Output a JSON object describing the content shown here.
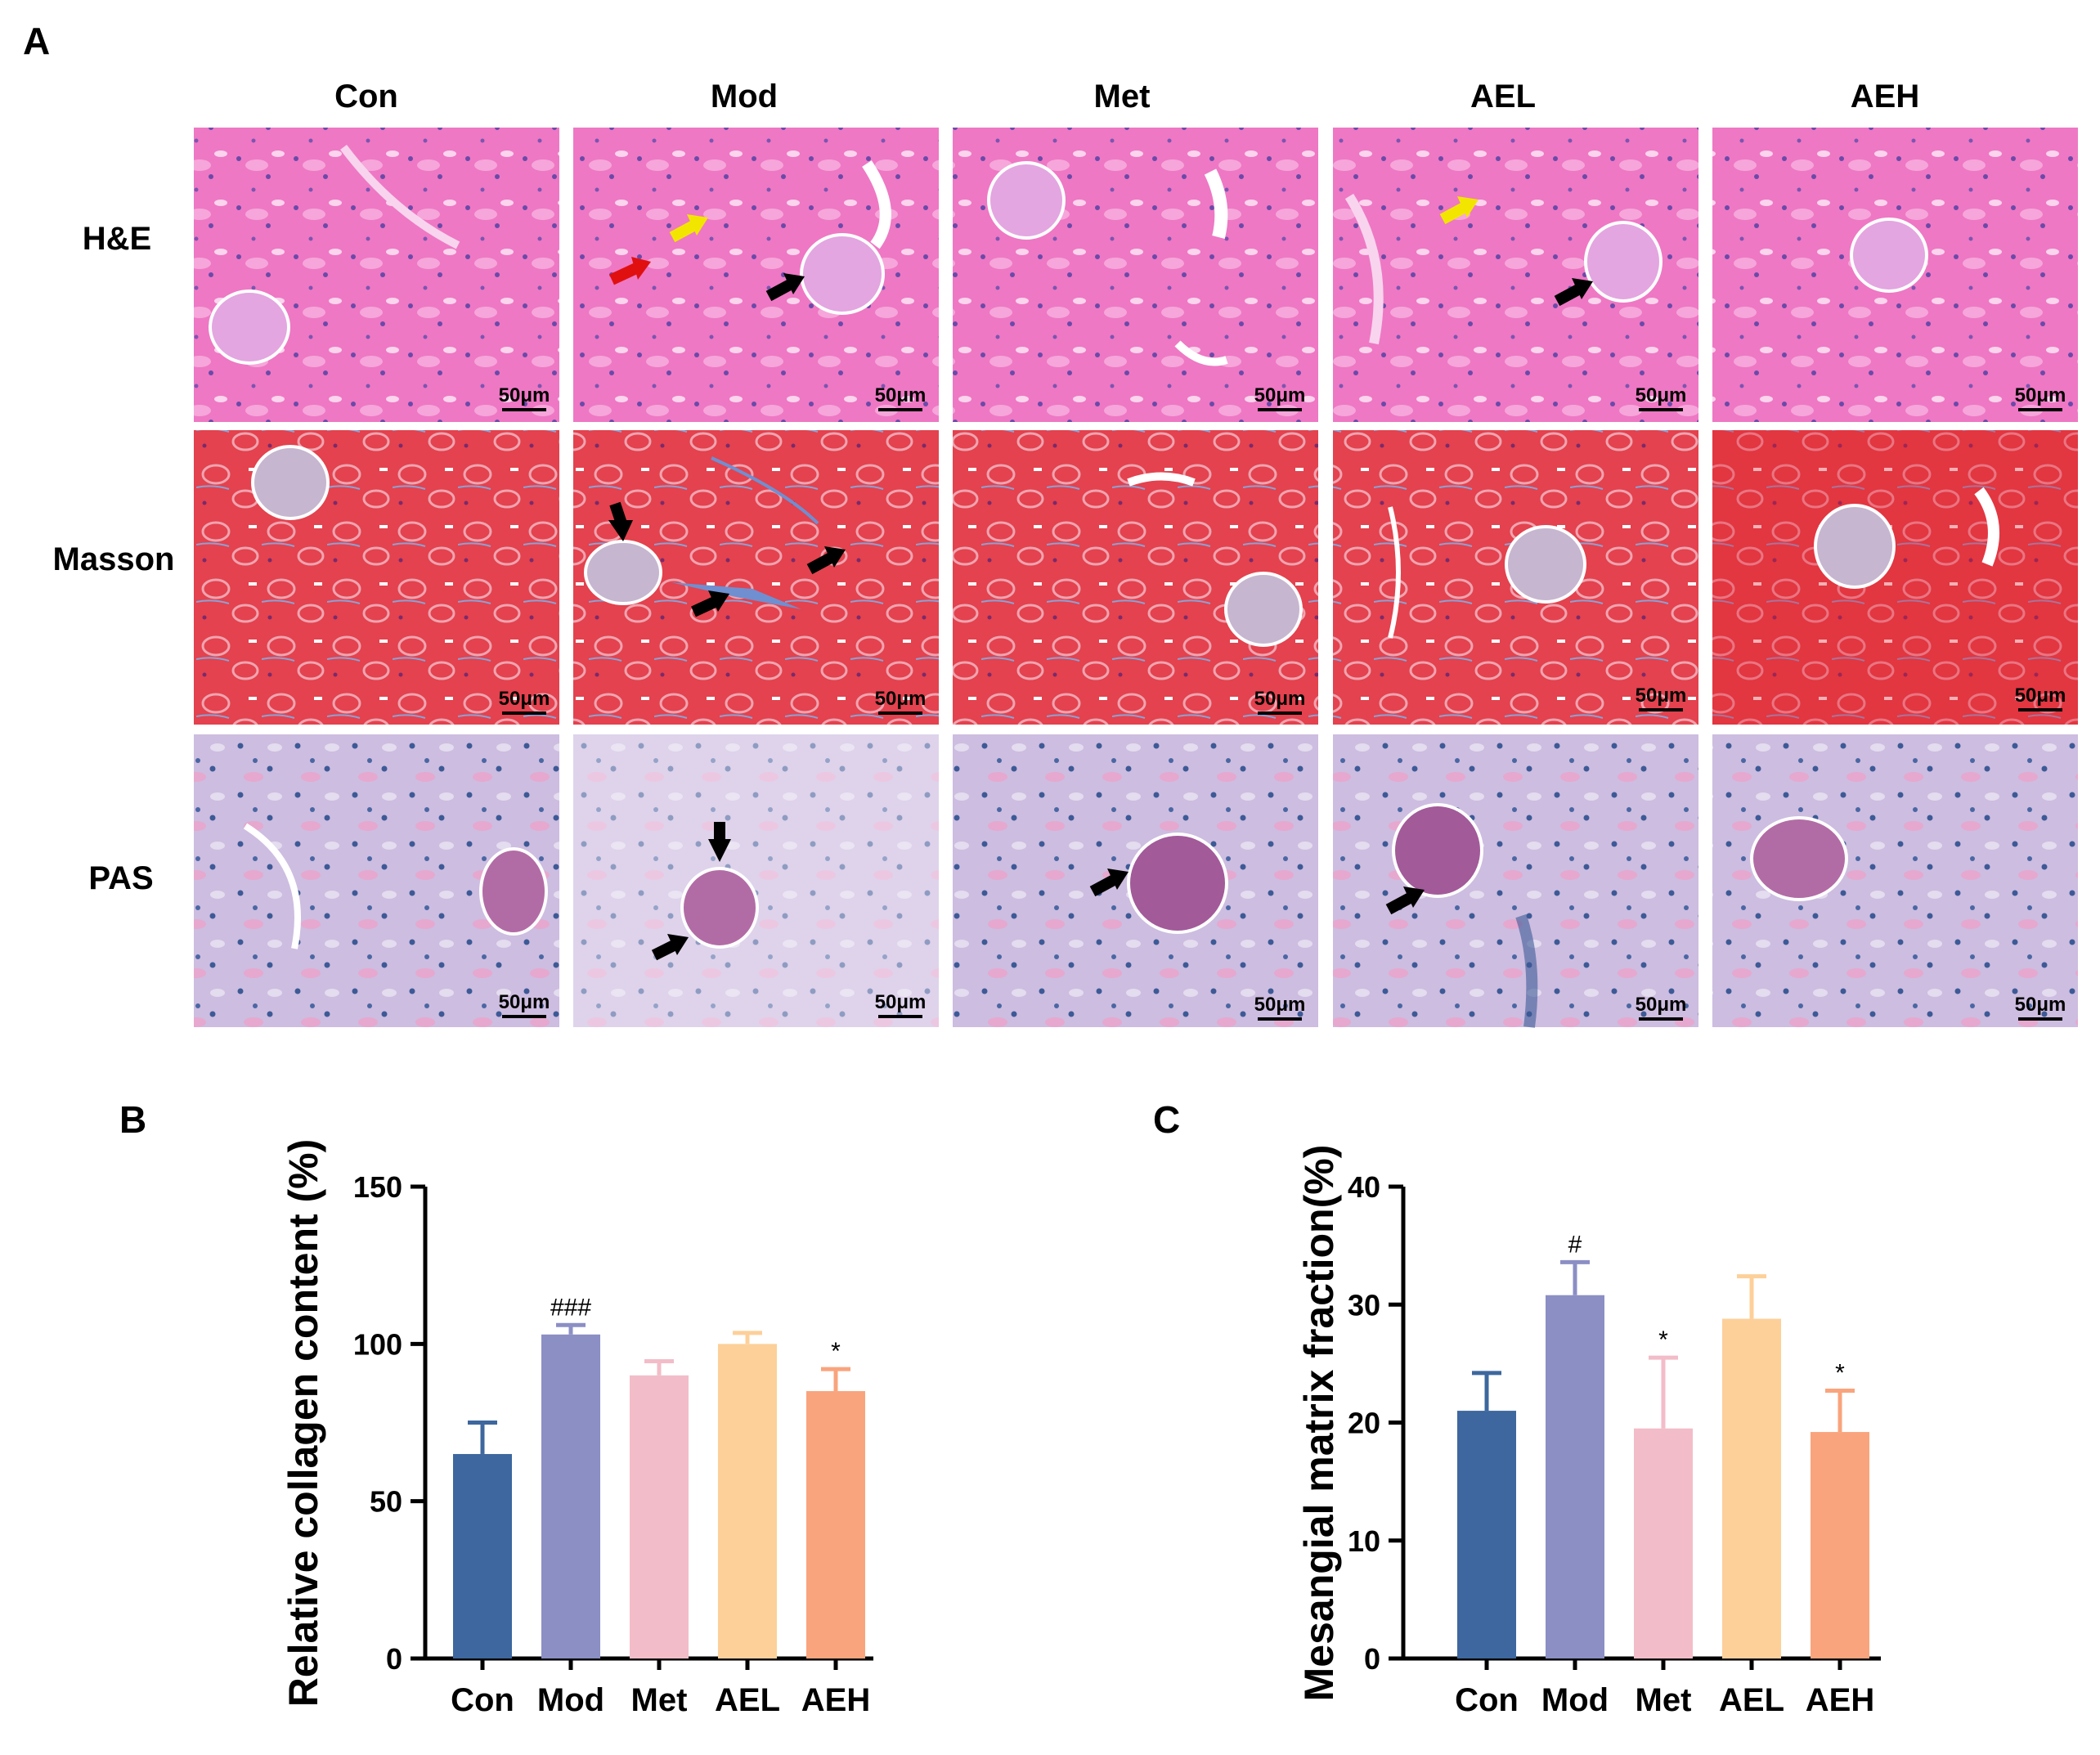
{
  "figure": {
    "panel_a_letter": "A",
    "panel_b_letter": "B",
    "panel_c_letter": "C"
  },
  "micrographs": {
    "columns": [
      "Con",
      "Mod",
      "Met",
      "AEL",
      "AEH"
    ],
    "rows": [
      "H&E",
      "Masson",
      "PAS"
    ],
    "scale_bar_label": "50μm",
    "stain_colors": {
      "H&E": "#ee78c4",
      "Masson": "#e3424e",
      "PAS": "#c9b8de"
    },
    "arrow_colors": {
      "black": "#000000",
      "red": "#e01010",
      "yellow": "#f2e600"
    }
  },
  "chart_data": [
    {
      "type": "bar",
      "panel": "B",
      "title": "",
      "xlabel": "",
      "ylabel": "Relative collagen content (%)",
      "categories": [
        "Con",
        "Mod",
        "Met",
        "AEL",
        "AEH"
      ],
      "values": [
        65,
        103,
        90,
        100,
        85
      ],
      "errors": [
        10,
        3,
        4.5,
        3.5,
        7
      ],
      "significance": [
        "",
        "###",
        "",
        "",
        "*"
      ],
      "colors": [
        "#3d679e",
        "#8b8fc4",
        "#f2bdc8",
        "#fdd09a",
        "#f9a47d"
      ],
      "ylim": [
        0,
        150
      ],
      "yticks": [
        0,
        50,
        100,
        150
      ]
    },
    {
      "type": "bar",
      "panel": "C",
      "title": "",
      "xlabel": "",
      "ylabel": "Mesangial matrix fraction(%)",
      "categories": [
        "Con",
        "Mod",
        "Met",
        "AEL",
        "AEH"
      ],
      "values": [
        21,
        30.8,
        19.5,
        28.8,
        19.2
      ],
      "errors": [
        3.2,
        2.8,
        6.0,
        3.6,
        3.5
      ],
      "significance": [
        "",
        "#",
        "*",
        "",
        "*"
      ],
      "colors": [
        "#3d679e",
        "#8b8fc4",
        "#f2bdc8",
        "#fdd09a",
        "#f9a47d"
      ],
      "ylim": [
        0,
        40
      ],
      "yticks": [
        0,
        10,
        20,
        30,
        40
      ]
    }
  ]
}
